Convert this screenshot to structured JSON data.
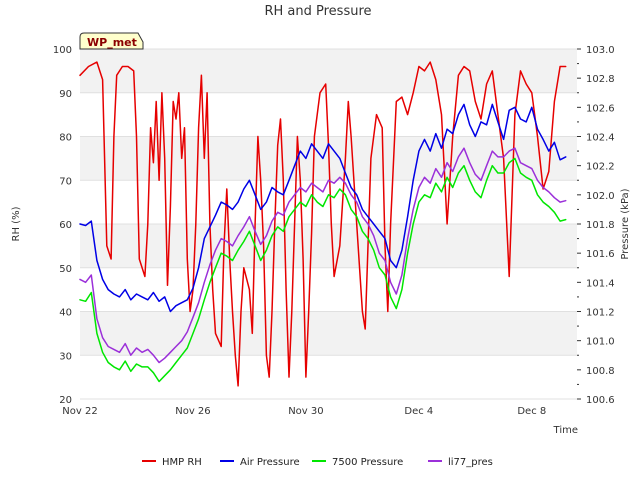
{
  "chart_data": {
    "type": "line",
    "title": "RH and Pressure",
    "badge": "WP_met",
    "xlabel": "Time",
    "ylabel_left": "RH (%)",
    "ylabel_right": "Pressure (kPa)",
    "x_ticks": [
      "Nov 22",
      "Nov 26",
      "Nov 30",
      "Dec 4",
      "Dec 8"
    ],
    "x_tick_days": [
      0,
      4,
      8,
      12,
      16
    ],
    "x_range_days": [
      0,
      17.6
    ],
    "ylim_left": [
      20,
      100
    ],
    "y_ticks_left": [
      20,
      30,
      40,
      50,
      60,
      70,
      80,
      90,
      100
    ],
    "ylim_right": [
      100.6,
      103.0
    ],
    "y_ticks_right": [
      "100.6",
      "100.8",
      "101.0",
      "101.2",
      "101.4",
      "101.6",
      "101.8",
      "102.0",
      "102.2",
      "102.4",
      "102.6",
      "102.8",
      "103.0"
    ],
    "grid": "horizontal bands",
    "legend_position": "bottom",
    "series": [
      {
        "name": "HMP RH",
        "axis": "left",
        "color": "#e60000",
        "x": [
          0.0,
          0.3,
          0.6,
          0.8,
          0.95,
          1.1,
          1.2,
          1.3,
          1.5,
          1.7,
          1.9,
          2.0,
          2.1,
          2.3,
          2.4,
          2.5,
          2.6,
          2.7,
          2.8,
          2.9,
          3.0,
          3.1,
          3.2,
          3.3,
          3.4,
          3.5,
          3.6,
          3.7,
          3.8,
          3.9,
          4.0,
          4.1,
          4.2,
          4.3,
          4.4,
          4.5,
          4.6,
          4.7,
          4.8,
          5.0,
          5.1,
          5.2,
          5.3,
          5.4,
          5.5,
          5.6,
          5.7,
          5.8,
          6.0,
          6.1,
          6.2,
          6.3,
          6.4,
          6.5,
          6.6,
          6.7,
          6.8,
          6.9,
          7.0,
          7.1,
          7.2,
          7.3,
          7.4,
          7.5,
          7.6,
          7.7,
          7.8,
          7.9,
          8.0,
          8.1,
          8.2,
          8.3,
          8.5,
          8.7,
          8.8,
          8.9,
          9.0,
          9.2,
          9.4,
          9.5,
          9.6,
          9.8,
          10.0,
          10.1,
          10.2,
          10.3,
          10.5,
          10.7,
          10.8,
          10.9,
          11.0,
          11.2,
          11.4,
          11.6,
          11.8,
          12.0,
          12.2,
          12.4,
          12.6,
          12.8,
          13.0,
          13.2,
          13.4,
          13.6,
          13.8,
          14.0,
          14.2,
          14.4,
          14.6,
          14.8,
          15.0,
          15.2,
          15.4,
          15.6,
          15.8,
          16.0,
          16.2,
          16.4,
          16.6,
          16.8,
          17.0,
          17.2
        ],
        "y": [
          94,
          96,
          97,
          93,
          55,
          52,
          80,
          94,
          96,
          96,
          95,
          80,
          52,
          48,
          60,
          82,
          74,
          88,
          70,
          90,
          75,
          46,
          64,
          88,
          84,
          90,
          75,
          82,
          52,
          40,
          45,
          60,
          82,
          94,
          75,
          90,
          60,
          45,
          35,
          32,
          55,
          68,
          52,
          40,
          30,
          23,
          40,
          50,
          45,
          35,
          60,
          80,
          70,
          55,
          30,
          25,
          40,
          60,
          78,
          84,
          70,
          45,
          25,
          40,
          60,
          80,
          70,
          52,
          25,
          40,
          58,
          80,
          90,
          92,
          78,
          60,
          48,
          55,
          75,
          88,
          80,
          60,
          40,
          36,
          55,
          75,
          85,
          82,
          55,
          40,
          60,
          88,
          89,
          85,
          90,
          96,
          95,
          97,
          93,
          85,
          60,
          80,
          94,
          96,
          95,
          88,
          84,
          92,
          95,
          85,
          75,
          48,
          85,
          95,
          92,
          90,
          80,
          68,
          72,
          88,
          96,
          96
        ]
      },
      {
        "name": "Air Pressure",
        "axis": "right",
        "color": "#0000e6",
        "x": [
          0.0,
          0.2,
          0.4,
          0.6,
          0.8,
          1.0,
          1.2,
          1.4,
          1.6,
          1.8,
          2.0,
          2.2,
          2.4,
          2.6,
          2.8,
          3.0,
          3.2,
          3.4,
          3.6,
          3.8,
          4.0,
          4.2,
          4.4,
          4.6,
          4.8,
          5.0,
          5.2,
          5.4,
          5.6,
          5.8,
          6.0,
          6.2,
          6.4,
          6.6,
          6.8,
          7.0,
          7.2,
          7.4,
          7.6,
          7.8,
          8.0,
          8.2,
          8.4,
          8.6,
          8.8,
          9.0,
          9.2,
          9.4,
          9.6,
          9.8,
          10.0,
          10.2,
          10.4,
          10.6,
          10.8,
          11.0,
          11.2,
          11.4,
          11.6,
          11.8,
          12.0,
          12.2,
          12.4,
          12.6,
          12.8,
          13.0,
          13.2,
          13.4,
          13.6,
          13.8,
          14.0,
          14.2,
          14.4,
          14.6,
          14.8,
          15.0,
          15.2,
          15.4,
          15.6,
          15.8,
          16.0,
          16.2,
          16.4,
          16.6,
          16.8,
          17.0,
          17.2
        ],
        "y": [
          101.8,
          101.79,
          101.82,
          101.55,
          101.42,
          101.35,
          101.32,
          101.3,
          101.35,
          101.28,
          101.32,
          101.3,
          101.28,
          101.33,
          101.27,
          101.3,
          101.2,
          101.24,
          101.26,
          101.28,
          101.36,
          101.5,
          101.7,
          101.78,
          101.86,
          101.95,
          101.93,
          101.9,
          101.95,
          102.04,
          102.1,
          102.0,
          101.9,
          101.95,
          102.05,
          102.02,
          102.0,
          102.1,
          102.2,
          102.3,
          102.25,
          102.35,
          102.3,
          102.25,
          102.35,
          102.3,
          102.25,
          102.15,
          102.05,
          102.0,
          101.9,
          101.85,
          101.8,
          101.75,
          101.7,
          101.55,
          101.5,
          101.62,
          101.85,
          102.1,
          102.3,
          102.38,
          102.3,
          102.42,
          102.32,
          102.45,
          102.42,
          102.55,
          102.62,
          102.48,
          102.4,
          102.5,
          102.48,
          102.62,
          102.5,
          102.38,
          102.58,
          102.6,
          102.52,
          102.5,
          102.6,
          102.45,
          102.38,
          102.3,
          102.36,
          102.24,
          102.26
        ]
      },
      {
        "name": "7500 Pressure",
        "axis": "right",
        "color": "#00e600",
        "x": [
          0.0,
          0.2,
          0.4,
          0.6,
          0.8,
          1.0,
          1.2,
          1.4,
          1.6,
          1.8,
          2.0,
          2.2,
          2.4,
          2.6,
          2.8,
          3.0,
          3.2,
          3.4,
          3.6,
          3.8,
          4.0,
          4.2,
          4.4,
          4.6,
          4.8,
          5.0,
          5.2,
          5.4,
          5.6,
          5.8,
          6.0,
          6.2,
          6.4,
          6.6,
          6.8,
          7.0,
          7.2,
          7.4,
          7.6,
          7.8,
          8.0,
          8.2,
          8.4,
          8.6,
          8.8,
          9.0,
          9.2,
          9.4,
          9.6,
          9.8,
          10.0,
          10.2,
          10.4,
          10.6,
          10.8,
          11.0,
          11.2,
          11.4,
          11.6,
          11.8,
          12.0,
          12.2,
          12.4,
          12.6,
          12.8,
          13.0,
          13.2,
          13.4,
          13.6,
          13.8,
          14.0,
          14.2,
          14.4,
          14.6,
          14.8,
          15.0,
          15.2,
          15.4,
          15.6,
          15.8,
          16.0,
          16.2,
          16.4,
          16.6,
          16.8,
          17.0,
          17.2
        ],
        "y": [
          101.28,
          101.27,
          101.33,
          101.05,
          100.92,
          100.85,
          100.82,
          100.8,
          100.86,
          100.79,
          100.84,
          100.82,
          100.82,
          100.78,
          100.72,
          100.76,
          100.8,
          100.85,
          100.9,
          100.95,
          101.05,
          101.15,
          101.28,
          101.4,
          101.5,
          101.6,
          101.58,
          101.55,
          101.62,
          101.68,
          101.75,
          101.65,
          101.55,
          101.62,
          101.72,
          101.78,
          101.75,
          101.85,
          101.9,
          101.95,
          101.92,
          102.0,
          101.95,
          101.92,
          102.0,
          101.98,
          102.04,
          102.0,
          101.9,
          101.85,
          101.75,
          101.7,
          101.62,
          101.5,
          101.45,
          101.3,
          101.22,
          101.35,
          101.6,
          101.8,
          101.95,
          102.0,
          101.98,
          102.08,
          102.02,
          102.12,
          102.05,
          102.15,
          102.2,
          102.1,
          102.02,
          101.98,
          102.1,
          102.2,
          102.15,
          102.15,
          102.22,
          102.25,
          102.15,
          102.12,
          102.1,
          102.0,
          101.95,
          101.92,
          101.88,
          101.82,
          101.83
        ]
      },
      {
        "name": "li77_pres",
        "axis": "right",
        "color": "#9b30d9",
        "x": [
          0.0,
          0.2,
          0.4,
          0.6,
          0.8,
          1.0,
          1.2,
          1.4,
          1.6,
          1.8,
          2.0,
          2.2,
          2.4,
          2.6,
          2.8,
          3.0,
          3.2,
          3.4,
          3.6,
          3.8,
          4.0,
          4.2,
          4.4,
          4.6,
          4.8,
          5.0,
          5.2,
          5.4,
          5.6,
          5.8,
          6.0,
          6.2,
          6.4,
          6.6,
          6.8,
          7.0,
          7.2,
          7.4,
          7.6,
          7.8,
          8.0,
          8.2,
          8.4,
          8.6,
          8.8,
          9.0,
          9.2,
          9.4,
          9.6,
          9.8,
          10.0,
          10.2,
          10.4,
          10.6,
          10.8,
          11.0,
          11.2,
          11.4,
          11.6,
          11.8,
          12.0,
          12.2,
          12.4,
          12.6,
          12.8,
          13.0,
          13.2,
          13.4,
          13.6,
          13.8,
          14.0,
          14.2,
          14.4,
          14.6,
          14.8,
          15.0,
          15.2,
          15.4,
          15.6,
          15.8,
          16.0,
          16.2,
          16.4,
          16.6,
          16.8,
          17.0,
          17.2
        ],
        "y": [
          101.42,
          101.4,
          101.45,
          101.15,
          101.02,
          100.96,
          100.94,
          100.92,
          100.98,
          100.9,
          100.95,
          100.92,
          100.94,
          100.9,
          100.85,
          100.88,
          100.92,
          100.96,
          101.0,
          101.06,
          101.16,
          101.26,
          101.4,
          101.52,
          101.62,
          101.7,
          101.68,
          101.65,
          101.72,
          101.78,
          101.85,
          101.75,
          101.66,
          101.72,
          101.82,
          101.88,
          101.86,
          101.95,
          102.0,
          102.05,
          102.02,
          102.08,
          102.05,
          102.02,
          102.1,
          102.08,
          102.12,
          102.08,
          102.0,
          101.95,
          101.85,
          101.8,
          101.72,
          101.6,
          101.55,
          101.4,
          101.32,
          101.45,
          101.7,
          101.9,
          102.05,
          102.12,
          102.08,
          102.18,
          102.12,
          102.22,
          102.16,
          102.26,
          102.32,
          102.22,
          102.14,
          102.1,
          102.2,
          102.3,
          102.26,
          102.26,
          102.3,
          102.32,
          102.22,
          102.2,
          102.18,
          102.1,
          102.05,
          102.02,
          101.98,
          101.95,
          101.96
        ]
      }
    ]
  }
}
